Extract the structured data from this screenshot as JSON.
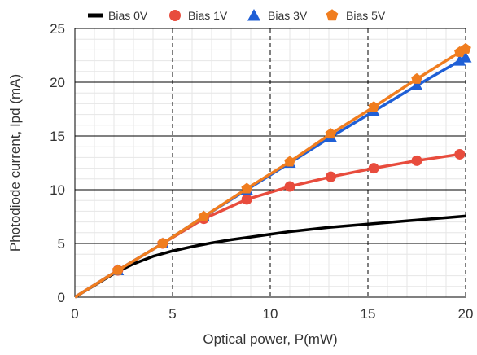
{
  "chart_data": {
    "type": "line",
    "xlabel": "Optical power, P(mW)",
    "ylabel": "Photodiode current, Ipd (mA)",
    "xlim": [
      0,
      20
    ],
    "ylim": [
      0,
      25
    ],
    "x_ticks": [
      0,
      5,
      10,
      15,
      20
    ],
    "y_ticks": [
      0,
      5,
      10,
      15,
      20,
      25
    ],
    "grid": {
      "major_solid_y": true,
      "major_dashed_x": true,
      "minor": true
    },
    "legend_placement": "top",
    "series": [
      {
        "name": "Bias 0V",
        "color": "#000000",
        "marker": "none",
        "x": [
          0,
          1,
          2,
          3,
          4,
          5,
          6,
          7,
          8,
          9,
          10,
          11,
          12,
          13,
          14,
          15,
          16,
          17,
          18,
          19,
          20
        ],
        "y": [
          0,
          1.1,
          2.2,
          3.1,
          3.8,
          4.3,
          4.7,
          5.05,
          5.35,
          5.6,
          5.85,
          6.1,
          6.3,
          6.5,
          6.65,
          6.8,
          6.95,
          7.1,
          7.25,
          7.4,
          7.55
        ]
      },
      {
        "name": "Bias 1V",
        "color": "#e84c3d",
        "marker": "circle",
        "x": [
          0,
          2.2,
          4.5,
          6.6,
          8.8,
          11.0,
          13.1,
          15.3,
          17.5,
          19.7
        ],
        "y": [
          0,
          2.5,
          5.0,
          7.3,
          9.1,
          10.3,
          11.2,
          12.0,
          12.7,
          13.3
        ]
      },
      {
        "name": "Bias 3V",
        "color": "#1f5fd6",
        "marker": "triangle",
        "x": [
          0,
          2.2,
          4.5,
          6.6,
          8.8,
          11.0,
          13.1,
          15.3,
          17.5,
          19.7,
          20
        ],
        "y": [
          0,
          2.5,
          5.0,
          7.5,
          10.0,
          12.5,
          14.9,
          17.3,
          19.7,
          22.0,
          22.3
        ]
      },
      {
        "name": "Bias 5V",
        "color": "#f07d1f",
        "marker": "pentagon",
        "x": [
          0,
          2.2,
          4.5,
          6.6,
          8.8,
          11.0,
          13.1,
          15.3,
          17.5,
          19.7,
          20
        ],
        "y": [
          0,
          2.5,
          5.0,
          7.5,
          10.1,
          12.6,
          15.2,
          17.7,
          20.3,
          22.8,
          23.1
        ]
      }
    ]
  }
}
